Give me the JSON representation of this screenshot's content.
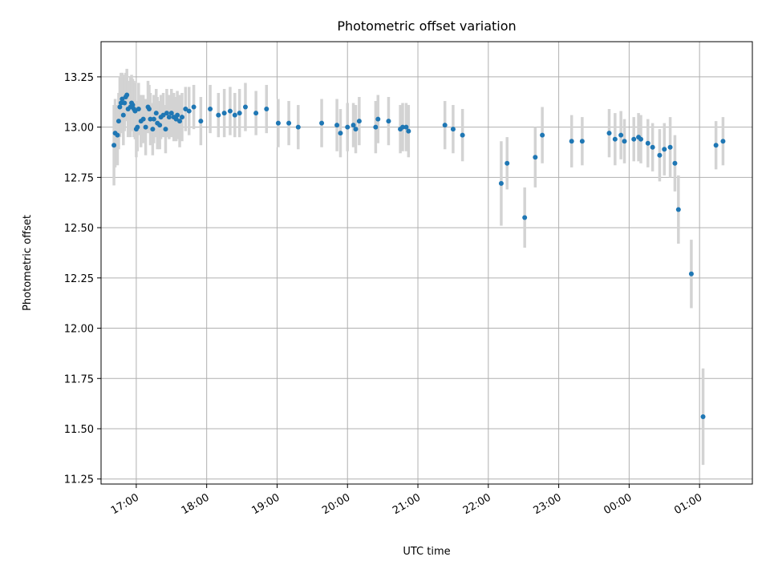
{
  "chart_data": {
    "type": "scatter",
    "title": "Photometric offset variation",
    "xlabel": "UTC time",
    "ylabel": "Photometric offset",
    "xlim": [
      "16:30",
      "01:45"
    ],
    "ylim": [
      11.225,
      13.425
    ],
    "x_ticks": [
      "17:00",
      "18:00",
      "19:00",
      "20:00",
      "21:00",
      "22:00",
      "23:00",
      "00:00",
      "01:00"
    ],
    "y_ticks": [
      "11.25",
      "11.50",
      "11.75",
      "12.00",
      "12.25",
      "12.50",
      "12.75",
      "13.00",
      "13.25"
    ],
    "grid": true,
    "colors": {
      "points": "#1f77b4",
      "error_bars": "#d3d3d3",
      "grid": "#b0b0b0"
    },
    "series": [
      {
        "x": [
          "16:41",
          "16:42",
          "16:44",
          "16:45",
          "16:46",
          "16:47",
          "16:48",
          "16:49",
          "16:50",
          "16:51",
          "16:52",
          "16:53",
          "16:55",
          "16:56",
          "16:57",
          "16:58",
          "16:59",
          "17:00",
          "17:01",
          "17:02",
          "17:04",
          "17:06",
          "17:08",
          "17:10",
          "17:11",
          "17:12",
          "17:14",
          "17:15",
          "17:17",
          "17:18",
          "17:20",
          "17:21",
          "17:23",
          "17:25",
          "17:26",
          "17:28",
          "17:30",
          "17:32",
          "17:34",
          "17:35",
          "17:37",
          "17:39",
          "17:42",
          "17:45",
          "17:49",
          "17:55",
          "18:03",
          "18:10",
          "18:15",
          "18:20",
          "18:24",
          "18:28",
          "18:33",
          "18:42",
          "18:51",
          "19:01",
          "19:10",
          "19:18",
          "19:38",
          "19:51",
          "19:54",
          "20:00",
          "20:05",
          "20:07",
          "20:10",
          "20:24",
          "20:26",
          "20:35",
          "20:45",
          "20:47",
          "20:50",
          "20:52",
          "21:23",
          "21:30",
          "21:38",
          "22:11",
          "22:16",
          "22:31",
          "22:40",
          "22:46",
          "23:11",
          "23:20",
          "23:43",
          "23:48",
          "23:53",
          "23:56",
          "24:04",
          "24:08",
          "24:10",
          "24:16",
          "24:20",
          "24:26",
          "24:30",
          "24:35",
          "24:39",
          "24:42",
          "24:53",
          "25:03",
          "25:14",
          "25:20"
        ],
        "y": [
          12.91,
          12.97,
          12.96,
          13.03,
          13.1,
          13.12,
          13.14,
          13.06,
          13.12,
          13.15,
          13.16,
          13.09,
          13.1,
          13.12,
          13.11,
          13.09,
          13.08,
          12.99,
          13.0,
          13.09,
          13.03,
          13.04,
          13.0,
          13.1,
          13.09,
          13.04,
          12.99,
          13.04,
          13.07,
          13.02,
          13.01,
          13.05,
          13.06,
          12.99,
          13.07,
          13.05,
          13.07,
          13.05,
          13.04,
          13.06,
          13.03,
          13.05,
          13.09,
          13.08,
          13.1,
          13.03,
          13.09,
          13.06,
          13.07,
          13.08,
          13.06,
          13.07,
          13.1,
          13.07,
          13.09,
          13.02,
          13.02,
          13.0,
          13.02,
          13.01,
          12.97,
          13.0,
          13.01,
          12.99,
          13.03,
          13.0,
          13.04,
          13.03,
          12.99,
          13.0,
          13.0,
          12.98,
          13.01,
          12.99,
          12.96,
          12.72,
          12.82,
          12.55,
          12.85,
          12.96,
          12.93,
          12.93,
          12.97,
          12.94,
          12.96,
          12.93,
          12.94,
          12.95,
          12.94,
          12.92,
          12.9,
          12.86,
          12.89,
          12.9,
          12.82,
          12.59,
          12.27,
          11.56,
          12.91,
          12.93
        ],
        "yerr": [
          0.2,
          0.17,
          0.15,
          0.14,
          0.15,
          0.15,
          0.13,
          0.15,
          0.14,
          0.12,
          0.13,
          0.14,
          0.15,
          0.14,
          0.13,
          0.14,
          0.14,
          0.14,
          0.12,
          0.13,
          0.13,
          0.12,
          0.14,
          0.13,
          0.12,
          0.13,
          0.13,
          0.12,
          0.12,
          0.13,
          0.12,
          0.11,
          0.11,
          0.12,
          0.12,
          0.11,
          0.12,
          0.12,
          0.11,
          0.12,
          0.13,
          0.12,
          0.11,
          0.12,
          0.11,
          0.12,
          0.12,
          0.11,
          0.12,
          0.12,
          0.11,
          0.12,
          0.12,
          0.11,
          0.12,
          0.12,
          0.11,
          0.11,
          0.12,
          0.13,
          0.12,
          0.12,
          0.11,
          0.12,
          0.12,
          0.13,
          0.12,
          0.12,
          0.12,
          0.12,
          0.12,
          0.13,
          0.12,
          0.12,
          0.13,
          0.21,
          0.13,
          0.15,
          0.15,
          0.14,
          0.13,
          0.12,
          0.12,
          0.13,
          0.12,
          0.11,
          0.11,
          0.12,
          0.12,
          0.12,
          0.12,
          0.13,
          0.13,
          0.15,
          0.14,
          0.17,
          0.17,
          0.24,
          0.12,
          0.12
        ]
      }
    ]
  }
}
